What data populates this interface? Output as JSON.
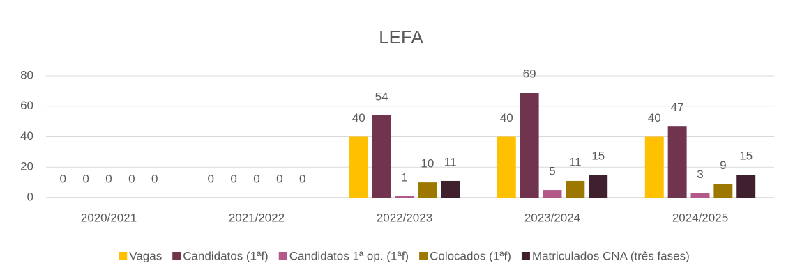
{
  "chart_data": {
    "type": "bar",
    "title": "LEFA",
    "categories": [
      "2020/2021",
      "2021/2022",
      "2022/2023",
      "2023/2024",
      "2024/2025"
    ],
    "series": [
      {
        "name": "Vagas",
        "color": "#ffc000",
        "values": [
          0,
          0,
          40,
          40,
          40
        ]
      },
      {
        "name": "Candidatos (1ªf)",
        "color": "#70344f",
        "values": [
          0,
          0,
          54,
          69,
          47
        ]
      },
      {
        "name": "Candidatos 1ª op. (1ªf)",
        "color": "#b3598a",
        "values": [
          0,
          0,
          1,
          5,
          3
        ]
      },
      {
        "name": "Colocados (1ªf)",
        "color": "#9c7800",
        "values": [
          0,
          0,
          10,
          11,
          9
        ]
      },
      {
        "name": "Matriculados CNA (três fases)",
        "color": "#40202f",
        "values": [
          0,
          0,
          11,
          15,
          15
        ]
      }
    ],
    "ylim": [
      0,
      80
    ],
    "yticks": [
      0,
      20,
      40,
      60,
      80
    ],
    "grid": true,
    "legend": "bottom"
  }
}
